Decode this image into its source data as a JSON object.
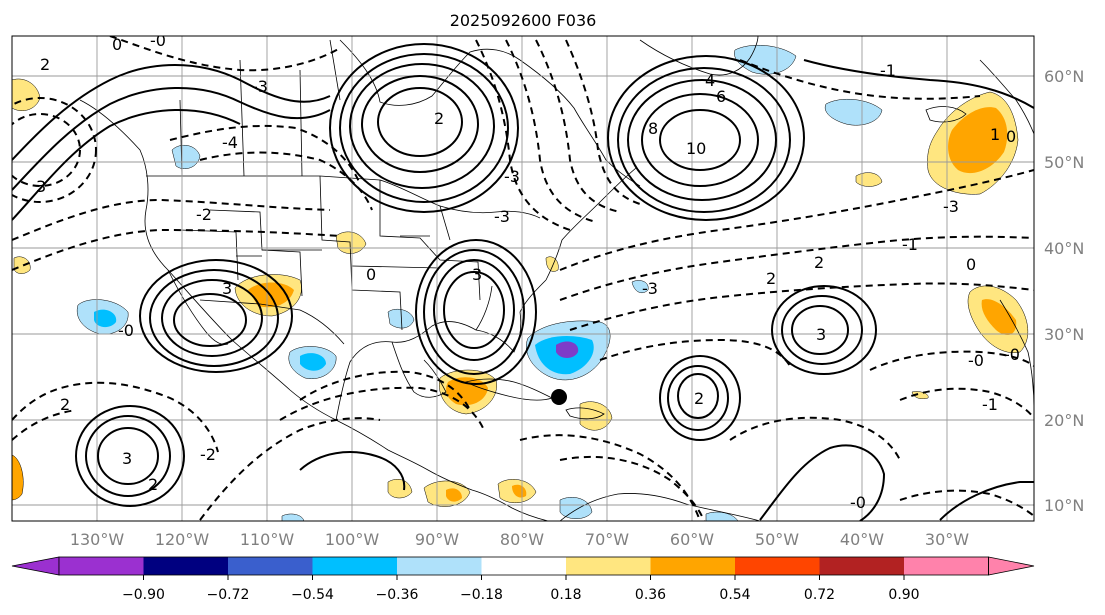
{
  "title": "2025092600 F036",
  "lat_labels": [
    "60°N",
    "50°N",
    "40°N",
    "30°N",
    "20°N",
    "10°N"
  ],
  "lon_labels": [
    "130°W",
    "120°W",
    "110°W",
    "100°W",
    "90°W",
    "80°W",
    "70°W",
    "60°W",
    "50°W",
    "40°W",
    "30°W"
  ],
  "colorbar": {
    "ticks": [
      "−0.90",
      "−0.72",
      "−0.54",
      "−0.36",
      "−0.18",
      "0.18",
      "0.36",
      "0.54",
      "0.72",
      "0.90"
    ],
    "colors": [
      "#9b30d0",
      "#000080",
      "#3a5fcd",
      "#00bfff",
      "#afe1fa",
      "#ffffff",
      "#ffe680",
      "#ffa500",
      "#ff4500",
      "#b22222",
      "#ff82ab"
    ]
  },
  "contour_labels": [
    "0",
    "-0",
    "2",
    "-3",
    "-4",
    "4",
    "6",
    "8",
    "10",
    "-1",
    "1",
    "3",
    "-2",
    "2",
    "3",
    "-3",
    "0",
    "-0",
    "3",
    "-1",
    "2",
    "-0",
    "-2",
    "2",
    "3",
    "2",
    "-0",
    "0",
    "-3",
    "-3",
    "-3",
    "2",
    "0",
    "-0",
    "3",
    "2",
    "-1"
  ],
  "colors": {
    "shade_purple": "#7e3cc8",
    "shade_light_blue": "#afe1fa",
    "shade_blue": "#00bfff",
    "shade_yellow": "#ffe680",
    "shade_orange": "#ffa500",
    "marker": "#000000"
  }
}
